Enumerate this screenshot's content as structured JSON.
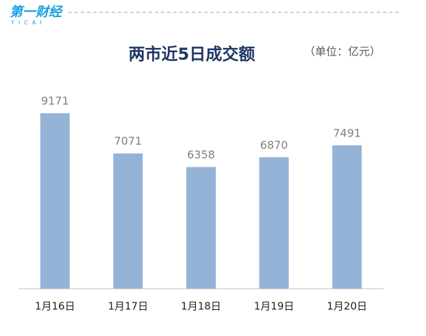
{
  "header": {
    "logo": "第一财经",
    "logo_sub": "YICAI"
  },
  "chart_data": {
    "type": "bar",
    "title": "两市近5日成交额",
    "subtitle": "（单位：亿元）",
    "categories": [
      "1月16日",
      "1月17日",
      "1月18日",
      "1月19日",
      "1月20日"
    ],
    "values": [
      9171,
      7071,
      6358,
      6870,
      7491
    ],
    "color": "#95b3d7",
    "ylim": [
      0,
      10000
    ]
  }
}
